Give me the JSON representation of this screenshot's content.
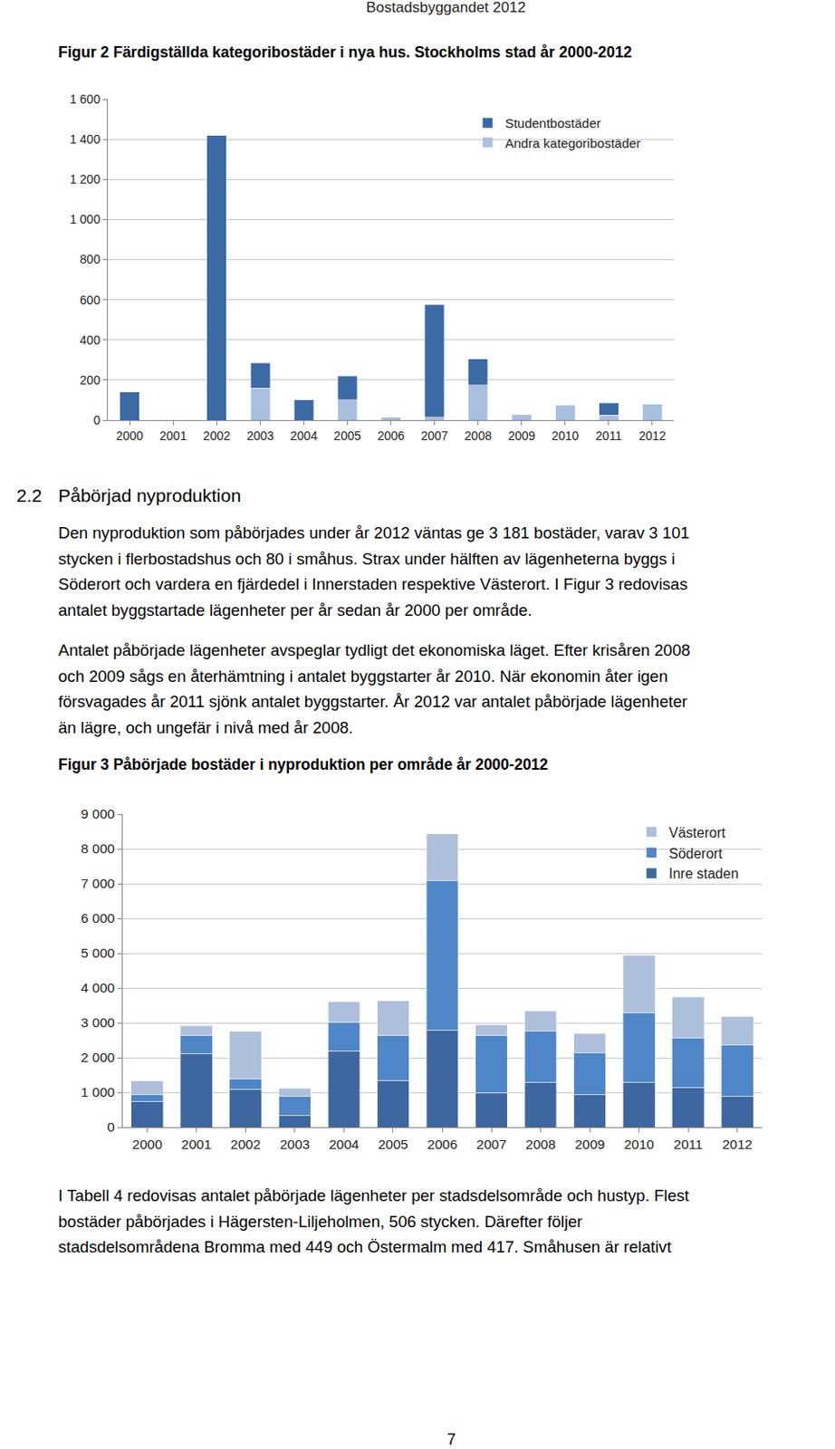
{
  "header": "Bostadsbyggandet 2012",
  "section": {
    "number": "2.2",
    "title": "Påbörjad nyproduktion",
    "paragraphs": [
      [
        "Den nyproduktion som påbörjades under år 2012 väntas ge 3 181 bostäder, varav 3 101",
        "stycken i flerbostadshus och 80 i småhus. Strax under hälften av lägenheterna byggs i",
        "Söderort och vardera en fjärdedel i Innerstaden respektive Västerort. I Figur 3 redovisas",
        "antalet byggstartade lägenheter per år sedan år 2000 per område."
      ],
      [
        "Antalet påbörjade lägenheter avspeglar tydligt det ekonomiska läget. Efter krisåren 2008",
        "och 2009 sågs en återhämtning i antalet byggstarter år 2010. När ekonomin åter igen",
        "försvagades år 2011 sjönk antalet byggstarter. År 2012 var antalet påbörjade lägenheter",
        "än lägre, och ungefär i nivå med år 2008."
      ]
    ]
  },
  "closing_paragraph": [
    "I Tabell 4 redovisas antalet påbörjade lägenheter per stadsdelsområde och hustyp. Flest",
    "bostäder påbörjades i Hägersten-Liljeholmen, 506 stycken. Därefter följer",
    "stadsdelsområdena Bromma med 449 och Östermalm med 417. Småhusen är relativt"
  ],
  "page_number": "7",
  "chart_data": [
    {
      "type": "bar",
      "title": "Figur 2 Färdigställda kategoribostäder i nya hus. Stockholms stad år 2000-2012",
      "categories": [
        "2000",
        "2001",
        "2002",
        "2003",
        "2004",
        "2005",
        "2006",
        "2007",
        "2008",
        "2009",
        "2010",
        "2011",
        "2012"
      ],
      "series": [
        {
          "name": "Andra kategoribostäder",
          "color": "#a9bfdf",
          "values": [
            0,
            0,
            0,
            160,
            0,
            100,
            15,
            15,
            175,
            30,
            75,
            25,
            80
          ]
        },
        {
          "name": "Studentbostäder",
          "color": "#3b6aa4",
          "values": [
            140,
            0,
            1420,
            125,
            100,
            120,
            0,
            560,
            130,
            0,
            0,
            60,
            0
          ]
        }
      ],
      "stacked": true,
      "ylim": [
        0,
        1600
      ],
      "yticks": [
        0,
        200,
        400,
        600,
        800,
        {
          "value": 1000,
          "label": "1 000"
        },
        {
          "value": 1200,
          "label": "1 200"
        },
        {
          "value": 1400,
          "label": "1 400"
        },
        {
          "value": 1600,
          "label": "1 600"
        }
      ],
      "grid": true,
      "legend": "upper right"
    },
    {
      "type": "bar",
      "title": "Figur 3 Påbörjade bostäder i nyproduktion per område år 2000-2012",
      "categories": [
        "2000",
        "2001",
        "2002",
        "2003",
        "2004",
        "2005",
        "2006",
        "2007",
        "2008",
        "2009",
        "2010",
        "2011",
        "2012"
      ],
      "series": [
        {
          "name": "Inre staden",
          "color": "#3e67a0",
          "values": [
            750,
            2120,
            1100,
            350,
            2200,
            1350,
            2800,
            1000,
            1300,
            950,
            1300,
            1150,
            900
          ]
        },
        {
          "name": "Söderort",
          "color": "#4f86c8",
          "values": [
            200,
            530,
            280,
            530,
            820,
            1300,
            4280,
            1650,
            1460,
            1200,
            2000,
            1420,
            1460
          ]
        },
        {
          "name": "Västerort",
          "color": "#aebfdb",
          "values": [
            380,
            270,
            1380,
            240,
            590,
            980,
            1350,
            290,
            580,
            550,
            1650,
            1170,
            820
          ]
        }
      ],
      "stacked": true,
      "ylim": [
        0,
        9000
      ],
      "yticks": [
        0,
        {
          "value": 1000,
          "label": "1 000"
        },
        {
          "value": 2000,
          "label": "2 000"
        },
        {
          "value": 3000,
          "label": "3 000"
        },
        {
          "value": 4000,
          "label": "4 000"
        },
        {
          "value": 5000,
          "label": "5 000"
        },
        {
          "value": 6000,
          "label": "6 000"
        },
        {
          "value": 7000,
          "label": "7 000"
        },
        {
          "value": 8000,
          "label": "8 000"
        },
        {
          "value": 9000,
          "label": "9 000"
        }
      ],
      "grid": true,
      "legend": "upper right"
    }
  ]
}
